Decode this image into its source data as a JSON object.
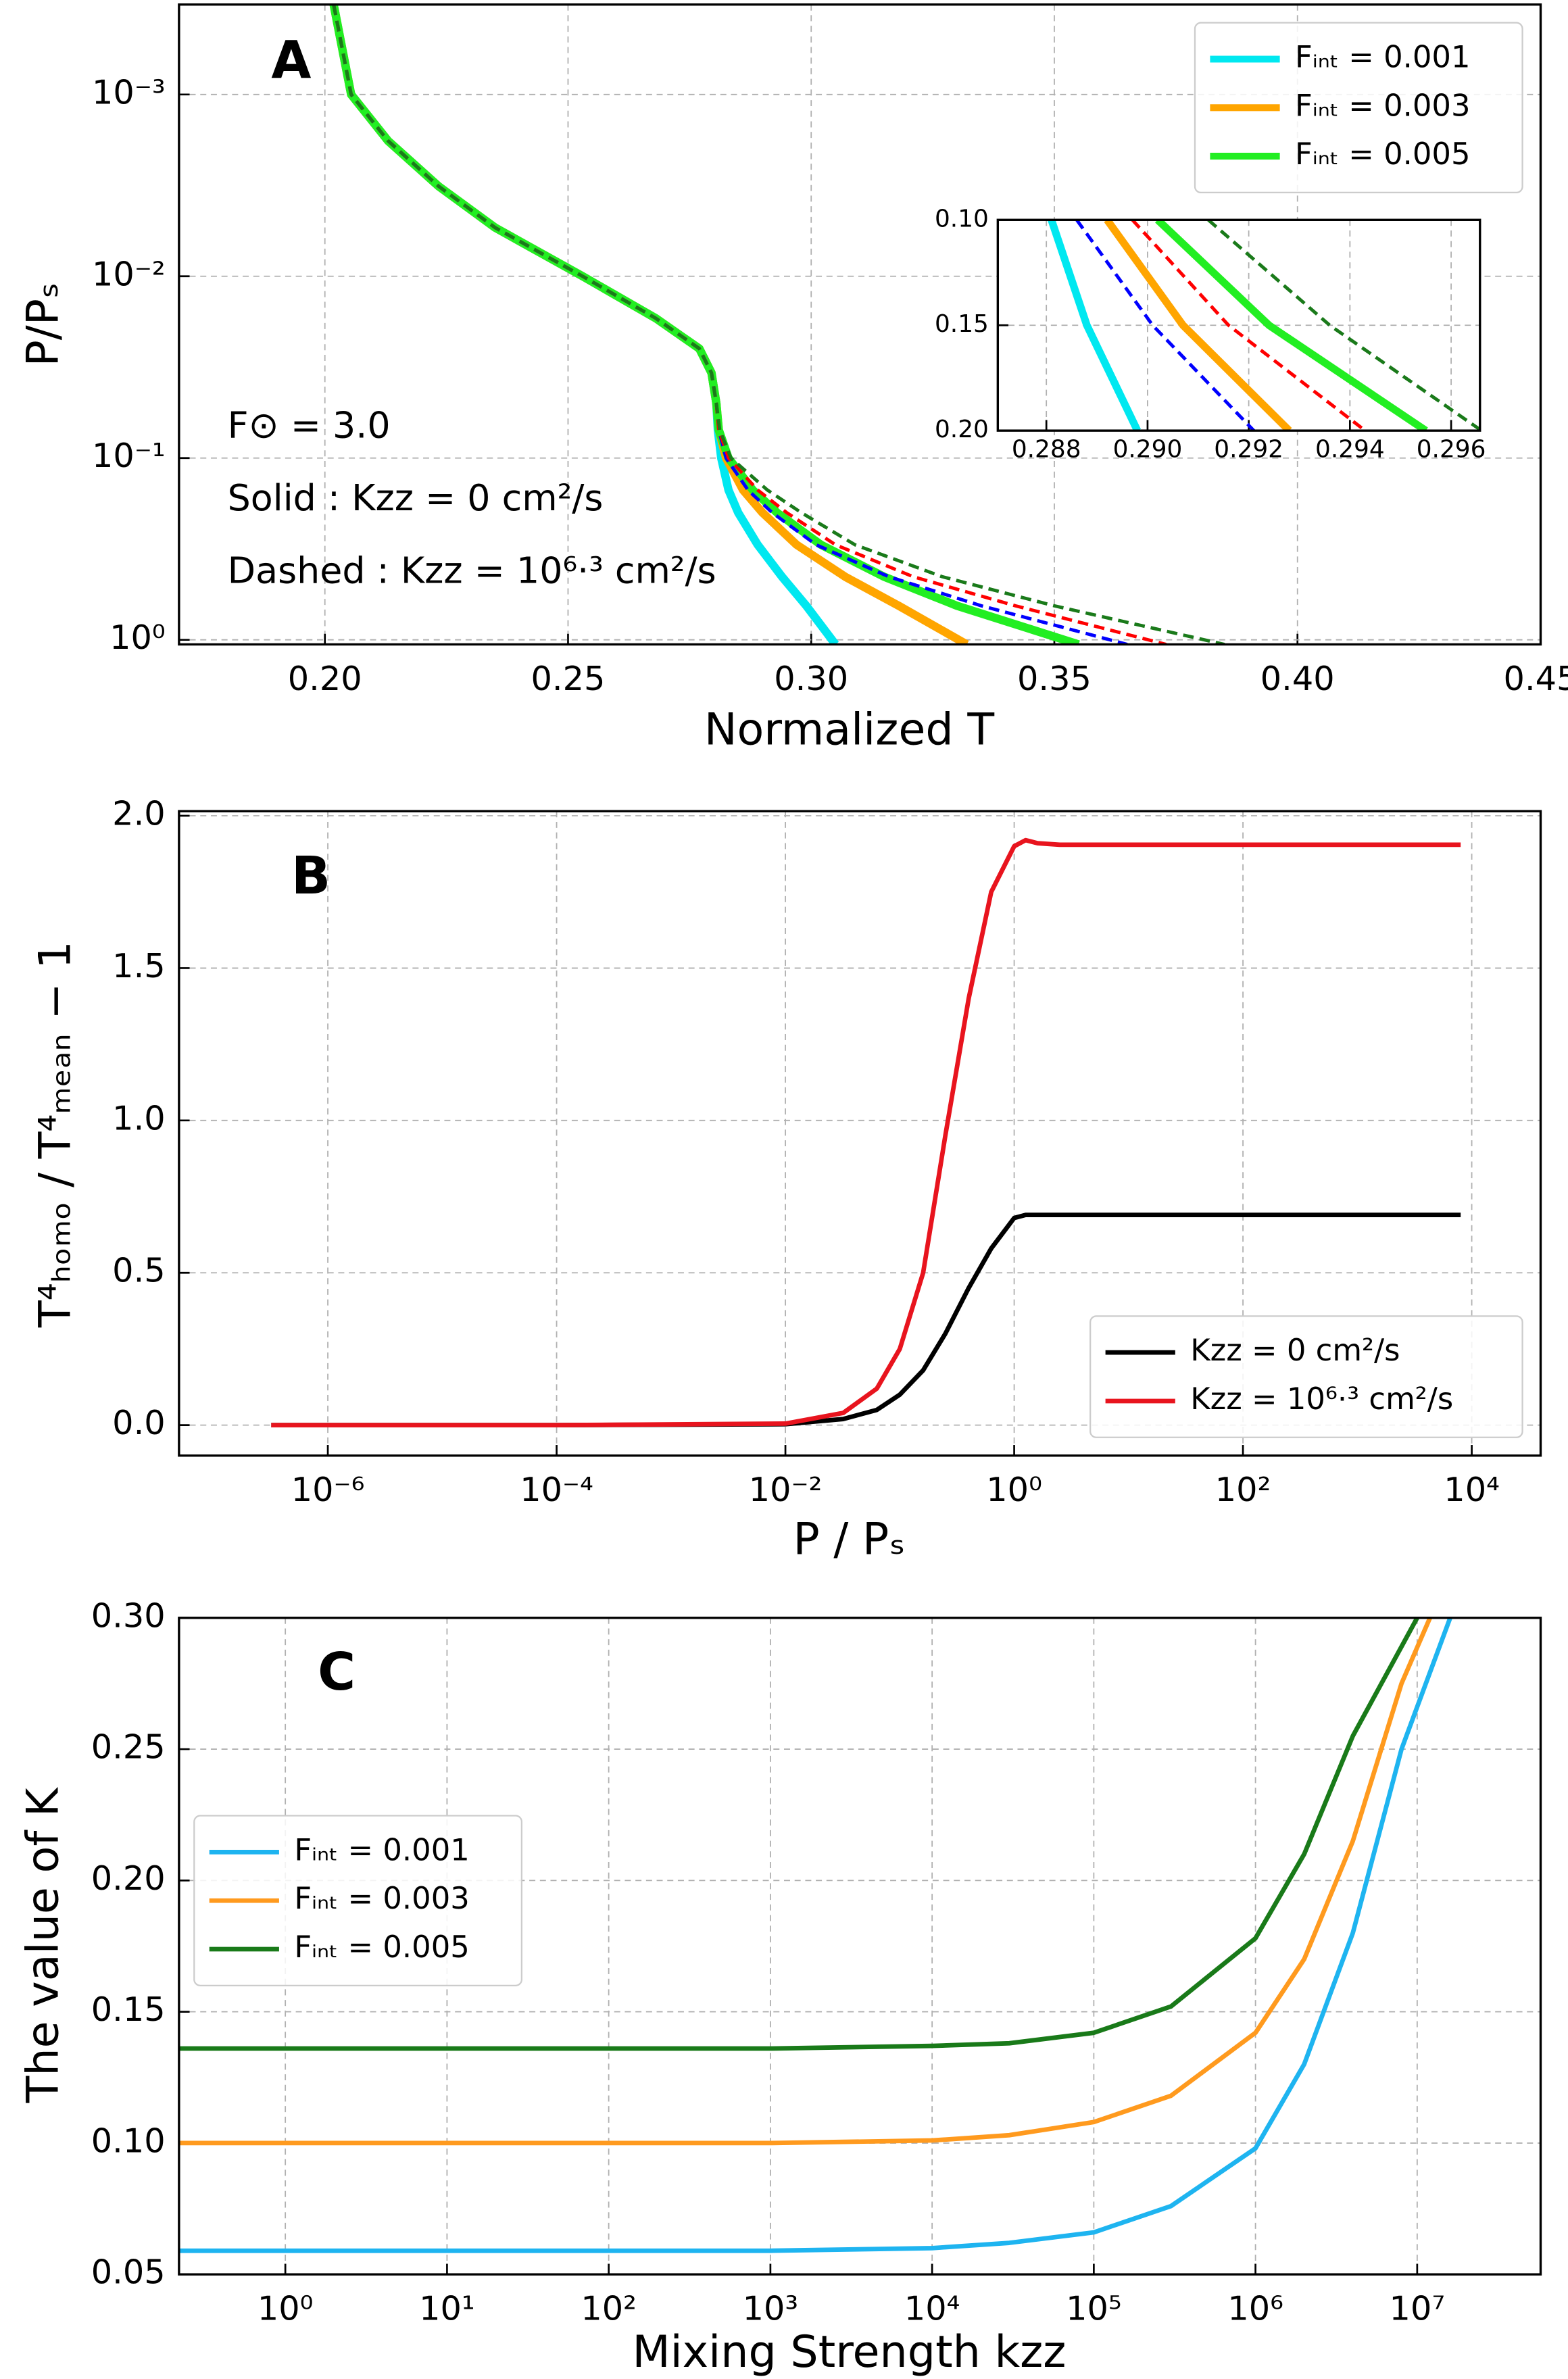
{
  "chart_data": [
    {
      "type": "line",
      "panel_label": "A",
      "xlabel": "Normalized T",
      "ylabel": "P/Pₛ",
      "annotations": [
        "F⊙ = 3.0",
        "Solid : Kzz = 0  cm²/s",
        "Dashed : Kzz = 10⁶·³ cm²/s"
      ],
      "xlim": [
        0.17,
        0.45
      ],
      "xticks": [
        {
          "value": 0.2,
          "label": "0.20"
        },
        0.25,
        {
          "value": 0.3,
          "label": "0.30"
        },
        0.35,
        {
          "value": 0.4,
          "label": "0.40"
        },
        0.45
      ],
      "y_scale": "log",
      "y_inverted": true,
      "ylim": [
        0.00032,
        1.06
      ],
      "yticks": [
        {
          "value": 0.001,
          "label": "10⁻³"
        },
        {
          "value": 0.01,
          "label": "10⁻²"
        },
        {
          "value": 0.1,
          "label": "10⁻¹"
        },
        {
          "value": 1,
          "label": "10⁰"
        }
      ],
      "grid": true,
      "legend_loc": "upper right",
      "series": [
        {
          "name": "Fᵢₙₜ = 0.001",
          "color": "#00e8f0",
          "line_style": "solid",
          "x": [
            0.2018,
            0.2054,
            0.213,
            0.2234,
            0.235,
            0.253,
            0.268,
            0.277,
            0.2795,
            0.2805,
            0.2808,
            0.2815,
            0.283,
            0.285,
            0.289,
            0.294,
            0.299,
            0.305
          ],
          "values": [
            0.00032,
            0.001,
            0.0018,
            0.0032,
            0.0054,
            0.01,
            0.017,
            0.025,
            0.034,
            0.05,
            0.07,
            0.1,
            0.15,
            0.2,
            0.3,
            0.45,
            0.65,
            1.06
          ]
        },
        {
          "name": "Fᵢₙₜ = 0.003",
          "color": "#ffa500",
          "line_style": "solid",
          "x": [
            0.2018,
            0.2054,
            0.213,
            0.2234,
            0.235,
            0.253,
            0.268,
            0.277,
            0.2795,
            0.2805,
            0.281,
            0.2825,
            0.286,
            0.29,
            0.297,
            0.307,
            0.318,
            0.332
          ],
          "values": [
            0.00032,
            0.001,
            0.0018,
            0.0032,
            0.0054,
            0.01,
            0.017,
            0.025,
            0.034,
            0.05,
            0.07,
            0.1,
            0.15,
            0.2,
            0.3,
            0.45,
            0.65,
            1.06
          ]
        },
        {
          "name": "Fᵢₙₜ = 0.005",
          "color": "#22ee22",
          "line_style": "solid",
          "x": [
            0.2018,
            0.2054,
            0.213,
            0.2234,
            0.235,
            0.253,
            0.268,
            0.277,
            0.2795,
            0.2805,
            0.281,
            0.283,
            0.288,
            0.293,
            0.302,
            0.315,
            0.33,
            0.355
          ],
          "values": [
            0.00032,
            0.001,
            0.0018,
            0.0032,
            0.0054,
            0.01,
            0.017,
            0.025,
            0.034,
            0.05,
            0.07,
            0.1,
            0.15,
            0.2,
            0.3,
            0.45,
            0.65,
            1.06
          ]
        },
        {
          "color": "#0000ff",
          "line_style": "dashed",
          "x": [
            0.2018,
            0.2054,
            0.213,
            0.2234,
            0.235,
            0.253,
            0.268,
            0.277,
            0.2795,
            0.2805,
            0.281,
            0.2825,
            0.287,
            0.292,
            0.301,
            0.316,
            0.335,
            0.365
          ],
          "values": [
            0.00032,
            0.001,
            0.0018,
            0.0032,
            0.0054,
            0.01,
            0.017,
            0.025,
            0.034,
            0.05,
            0.07,
            0.1,
            0.15,
            0.2,
            0.3,
            0.45,
            0.65,
            1.06
          ]
        },
        {
          "color": "#ff0000",
          "line_style": "dashed",
          "x": [
            0.2018,
            0.2054,
            0.213,
            0.2234,
            0.235,
            0.253,
            0.268,
            0.277,
            0.2795,
            0.2805,
            0.281,
            0.283,
            0.289,
            0.295,
            0.305,
            0.321,
            0.342,
            0.373
          ],
          "values": [
            0.00032,
            0.001,
            0.0018,
            0.0032,
            0.0054,
            0.01,
            0.017,
            0.025,
            0.034,
            0.05,
            0.07,
            0.1,
            0.15,
            0.2,
            0.3,
            0.45,
            0.65,
            1.06
          ]
        },
        {
          "color": "#1a7a1a",
          "line_style": "dashed",
          "x": [
            0.2018,
            0.2054,
            0.213,
            0.2234,
            0.235,
            0.253,
            0.268,
            0.277,
            0.2795,
            0.2805,
            0.2812,
            0.2835,
            0.291,
            0.298,
            0.309,
            0.327,
            0.35,
            0.385
          ],
          "values": [
            0.00032,
            0.001,
            0.0018,
            0.0032,
            0.0054,
            0.01,
            0.017,
            0.025,
            0.034,
            0.05,
            0.07,
            0.1,
            0.15,
            0.2,
            0.3,
            0.45,
            0.65,
            1.06
          ]
        }
      ]
    },
    {
      "type": "line",
      "xlim": [
        0.28704,
        0.29657
      ],
      "xticks": [
        0.288,
        {
          "value": 0.29,
          "label": "0.290"
        },
        0.292,
        0.294,
        0.296
      ],
      "y_inverted": true,
      "ylim": [
        0.1,
        0.2
      ],
      "yticks": [
        {
          "value": 0.1,
          "label": "0.10"
        },
        0.15,
        {
          "value": 0.2,
          "label": "0.20"
        }
      ],
      "grid": true,
      "series": [
        {
          "color": "#00e8f0",
          "line_style": "solid",
          "x": [
            0.2881,
            0.2888,
            0.2898
          ],
          "values": [
            0.1,
            0.15,
            0.2
          ]
        },
        {
          "color": "#ffa500",
          "line_style": "solid",
          "x": [
            0.2892,
            0.2907,
            0.2928
          ],
          "values": [
            0.1,
            0.15,
            0.2
          ]
        },
        {
          "color": "#22ee22",
          "line_style": "solid",
          "x": [
            0.2902,
            0.2924,
            0.2955
          ],
          "values": [
            0.1,
            0.15,
            0.2
          ]
        },
        {
          "color": "#0000ff",
          "line_style": "dashed",
          "x": [
            0.2886,
            0.2901,
            0.2921
          ],
          "values": [
            0.1,
            0.15,
            0.2
          ]
        },
        {
          "color": "#ff0000",
          "line_style": "dashed",
          "x": [
            0.2897,
            0.2916,
            0.2943
          ],
          "values": [
            0.1,
            0.15,
            0.2
          ]
        },
        {
          "color": "#1a7a1a",
          "line_style": "dashed",
          "x": [
            0.2912,
            0.2936,
            0.2966
          ],
          "values": [
            0.1,
            0.15,
            0.2
          ]
        }
      ]
    },
    {
      "type": "line",
      "panel_label": "B",
      "xlabel": "P / Pₛ",
      "ylabel": "T⁴ₕₒₘₒ / T⁴ₘₑₐₙ − 1",
      "x_scale": "log",
      "xlim": [
        5e-08,
        40000
      ],
      "xticks": [
        {
          "value": 1e-06,
          "label": "10⁻⁶"
        },
        {
          "value": 0.0001,
          "label": "10⁻⁴"
        },
        {
          "value": 0.01,
          "label": "10⁻²"
        },
        {
          "value": 1,
          "label": "10⁰"
        },
        {
          "value": 100,
          "label": "10²"
        },
        {
          "value": 10000,
          "label": "10⁴"
        }
      ],
      "ylim": [
        -0.1,
        2.015
      ],
      "yticks": [
        {
          "value": 0,
          "label": "0.0"
        },
        0.5,
        {
          "value": 1,
          "label": "1.0"
        },
        1.5,
        {
          "value": 2,
          "label": "2.0"
        }
      ],
      "grid": true,
      "legend_loc": "lower right",
      "x": [
        3.2e-07,
        0.0001,
        0.01,
        0.032,
        0.063,
        0.1,
        0.16,
        0.25,
        0.4,
        0.63,
        1,
        1.26,
        1.6,
        2.5,
        10,
        8000
      ],
      "series": [
        {
          "name": "Kzz = 0  cm²/s",
          "color": "#000000",
          "line_style": "solid",
          "values": [
            0,
            0,
            0.003,
            0.02,
            0.05,
            0.1,
            0.18,
            0.3,
            0.45,
            0.58,
            0.68,
            0.69,
            0.69,
            0.69,
            0.69,
            0.69
          ]
        },
        {
          "name": "Kzz = 10⁶·³  cm²/s",
          "color": "#e8141e",
          "line_style": "solid",
          "values": [
            0,
            0,
            0.005,
            0.04,
            0.12,
            0.25,
            0.5,
            0.95,
            1.4,
            1.75,
            1.9,
            1.92,
            1.91,
            1.905,
            1.905,
            1.905
          ]
        }
      ]
    },
    {
      "type": "line",
      "panel_label": "C",
      "xlabel": "Mixing Strength kzz",
      "ylabel": "The value of K",
      "x_scale": "log",
      "xlim": [
        0.22,
        58000000
      ],
      "xticks": [
        {
          "value": 1,
          "label": "10⁰"
        },
        {
          "value": 10,
          "label": "10¹"
        },
        {
          "value": 100,
          "label": "10²"
        },
        {
          "value": 1000,
          "label": "10³"
        },
        {
          "value": 10000,
          "label": "10⁴"
        },
        {
          "value": 100000,
          "label": "10⁵"
        },
        {
          "value": 1000000,
          "label": "10⁶"
        },
        {
          "value": 10000000,
          "label": "10⁷"
        }
      ],
      "ylim": [
        0.05,
        0.3
      ],
      "yticks": [
        0.05,
        {
          "value": 0.1,
          "label": "0.10"
        },
        0.15,
        {
          "value": 0.2,
          "label": "0.20"
        },
        0.25,
        {
          "value": 0.3,
          "label": "0.30"
        }
      ],
      "grid": true,
      "legend_loc": "center left",
      "series": [
        {
          "name": "Fᵢₙₜ = 0.001",
          "color": "#1eb4f0",
          "line_style": "solid",
          "x": [
            0.22,
            1000,
            10000,
            30000,
            100000,
            300000,
            1000000,
            2000000,
            4000000,
            8000000,
            16000000
          ],
          "values": [
            0.059,
            0.059,
            0.06,
            0.062,
            0.066,
            0.076,
            0.098,
            0.13,
            0.18,
            0.25,
            0.3
          ]
        },
        {
          "name": "Fᵢₙₜ = 0.003",
          "color": "#ff9a1e",
          "line_style": "solid",
          "x": [
            0.22,
            1000,
            10000,
            30000,
            100000,
            300000,
            1000000,
            2000000,
            4000000,
            8000000,
            12000000
          ],
          "values": [
            0.1,
            0.1,
            0.101,
            0.103,
            0.108,
            0.118,
            0.142,
            0.17,
            0.215,
            0.275,
            0.3
          ]
        },
        {
          "name": "Fᵢₙₜ = 0.005",
          "color": "#197a19",
          "line_style": "solid",
          "x": [
            0.22,
            1000,
            10000,
            30000,
            100000,
            300000,
            1000000,
            2000000,
            4000000,
            10000000
          ],
          "values": [
            0.136,
            0.136,
            0.137,
            0.138,
            0.142,
            0.152,
            0.178,
            0.21,
            0.255,
            0.3
          ]
        }
      ]
    }
  ]
}
